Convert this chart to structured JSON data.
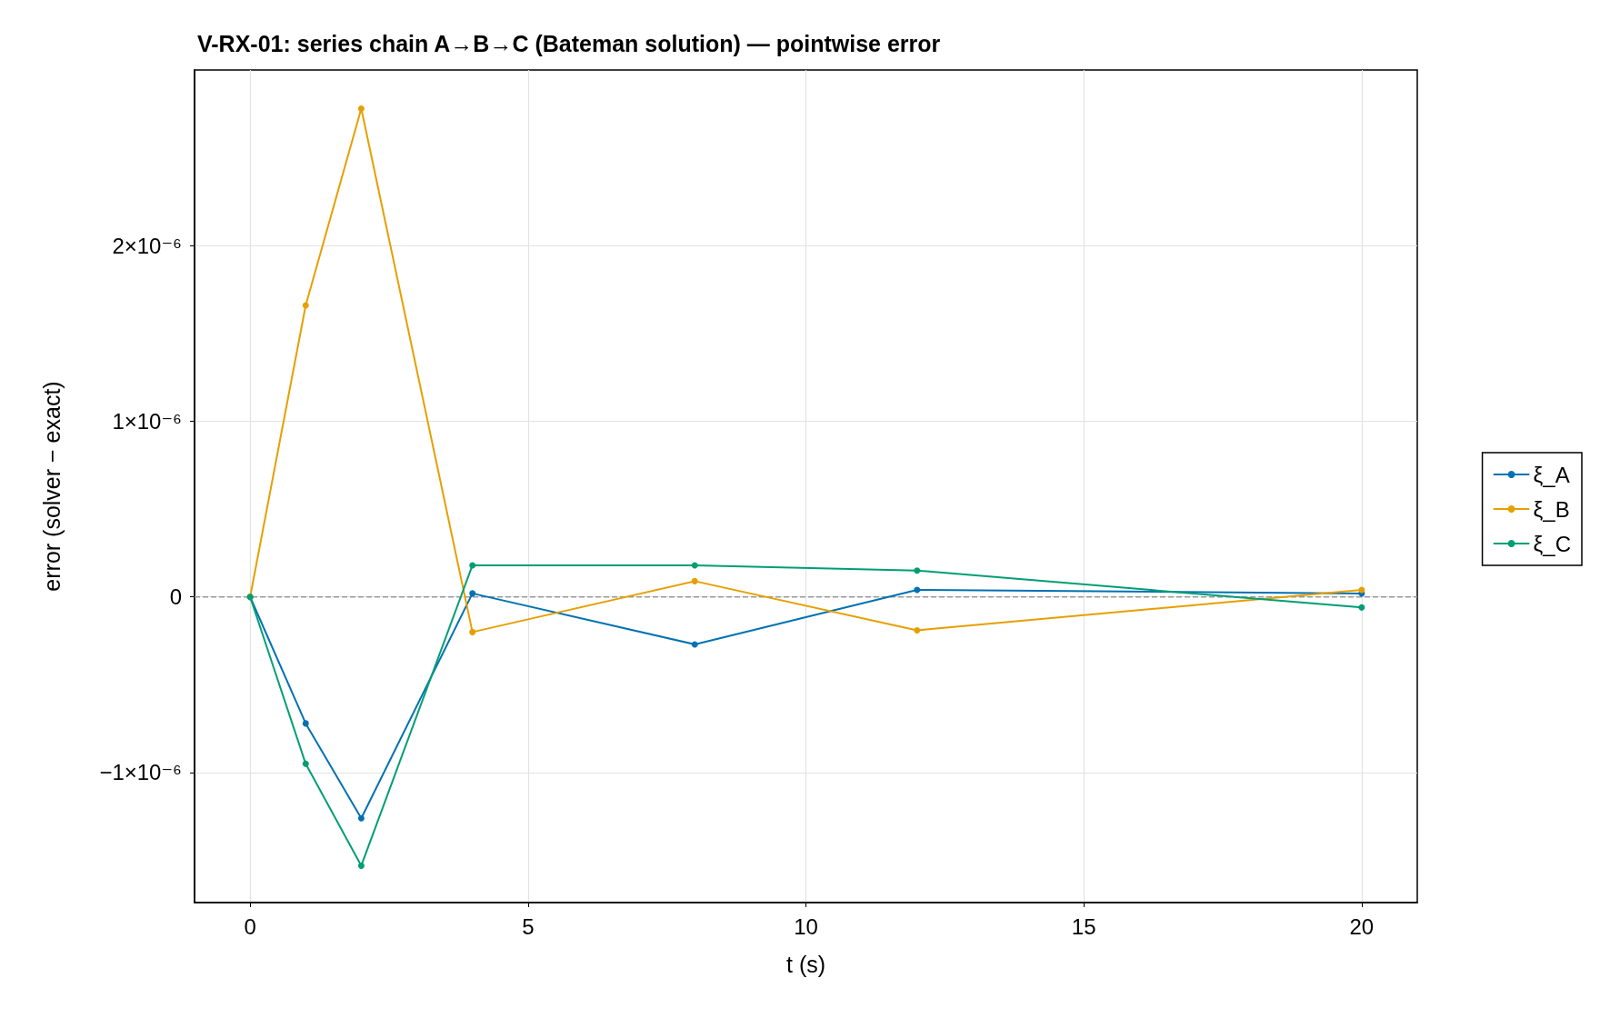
{
  "chart_data": {
    "type": "line",
    "title": "V-RX-01: series chain A→B→C (Bateman solution) — pointwise error",
    "xlabel": "t (s)",
    "ylabel": "error (solver − exact)",
    "x": [
      0,
      1,
      2,
      4,
      8,
      12,
      20
    ],
    "series": [
      {
        "name": "ξ_A",
        "color": "#0072b2",
        "values": [
          0,
          -7.2e-07,
          -1.26e-06,
          2e-08,
          -2.7e-07,
          4e-08,
          2e-08
        ]
      },
      {
        "name": "ξ_B",
        "color": "#e69f00",
        "values": [
          0,
          1.66e-06,
          2.78e-06,
          -2e-07,
          9e-08,
          -1.9e-07,
          4e-08
        ]
      },
      {
        "name": "ξ_C",
        "color": "#009e73",
        "values": [
          0,
          -9.5e-07,
          -1.53e-06,
          1.8e-07,
          1.8e-07,
          1.5e-07,
          -6e-08
        ]
      }
    ],
    "xlim": [
      -1,
      21
    ],
    "xticks": [
      0,
      5,
      10,
      15,
      20
    ],
    "ylim": [
      -1.74e-06,
      3e-06
    ],
    "yticks": [
      {
        "value": -1e-06,
        "label": "−1×10⁻⁶"
      },
      0,
      {
        "value": 1e-06,
        "label": "1×10⁻⁶"
      },
      {
        "value": 2e-06,
        "label": "2×10⁻⁶"
      }
    ],
    "ref_lines": [
      {
        "axis": "y",
        "value": 0,
        "color": "#999999",
        "line_style": "dashed"
      }
    ],
    "grid": true,
    "legend": "right",
    "marker": "circle",
    "line_style": "solid"
  }
}
